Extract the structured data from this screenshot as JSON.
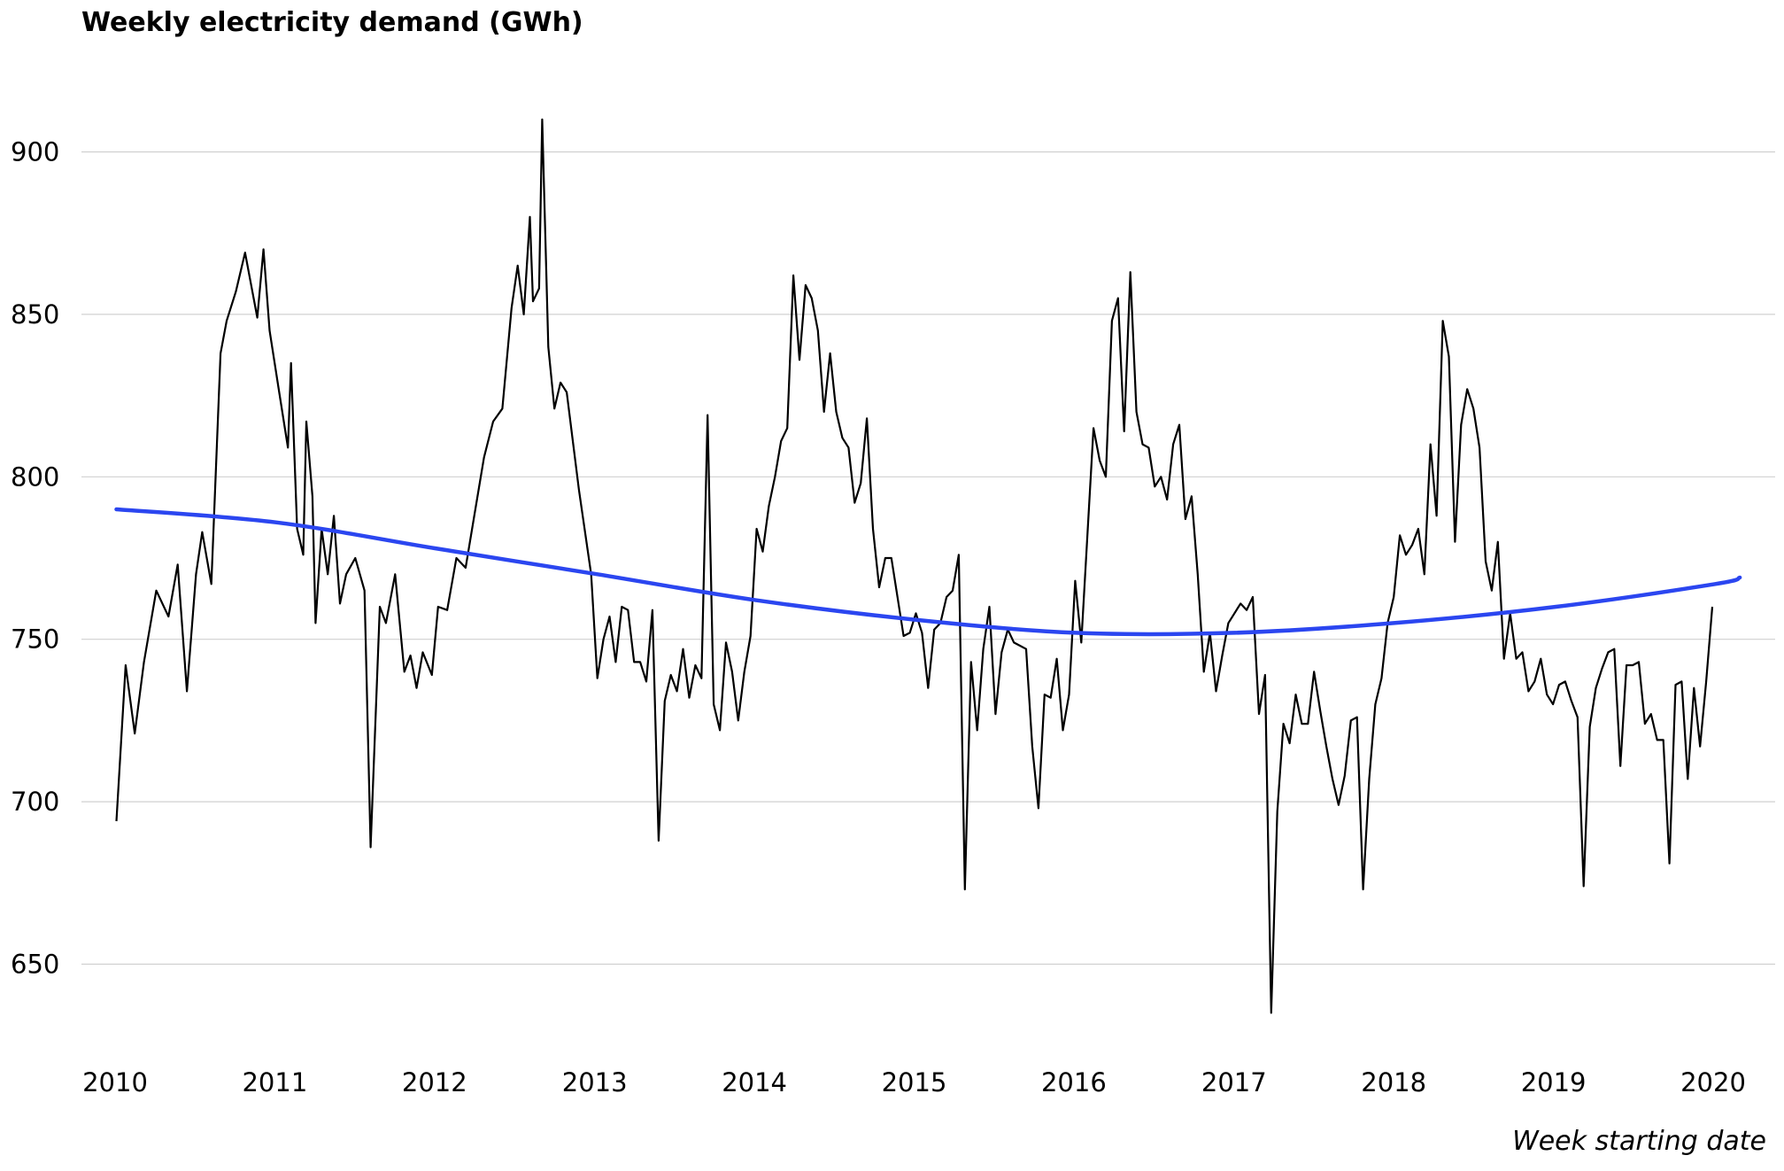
{
  "chart_data": {
    "type": "line",
    "title": "Weekly electricity demand (GWh)",
    "xlabel": "Week starting date",
    "ylabel": "",
    "x_ticks": [
      "2010",
      "2011",
      "2012",
      "2013",
      "2014",
      "2015",
      "2016",
      "2017",
      "2018",
      "2019",
      "2020"
    ],
    "y_ticks": [
      "650",
      "700",
      "750",
      "800",
      "850",
      "900"
    ],
    "xlim": [
      "2010-01-04",
      "2020-03-02"
    ],
    "ylim": [
      625,
      920
    ],
    "grid": "horizontal",
    "colors": {
      "series": "#000000",
      "trend": "#2b46f0",
      "grid": "#d0d0d0"
    },
    "series": [
      {
        "type": "line",
        "points": [
          [
            "2010-01-04",
            694
          ],
          [
            "2010-01-25",
            742
          ],
          [
            "2010-02-15",
            721
          ],
          [
            "2010-03-08",
            743
          ],
          [
            "2010-04-05",
            765
          ],
          [
            "2010-05-03",
            757
          ],
          [
            "2010-05-24",
            773
          ],
          [
            "2010-06-14",
            734
          ],
          [
            "2010-07-05",
            770
          ],
          [
            "2010-07-19",
            783
          ],
          [
            "2010-08-09",
            767
          ],
          [
            "2010-08-30",
            838
          ],
          [
            "2010-09-13",
            848
          ],
          [
            "2010-10-04",
            857
          ],
          [
            "2010-10-25",
            869
          ],
          [
            "2010-11-22",
            849
          ],
          [
            "2010-12-06",
            870
          ],
          [
            "2010-12-20",
            845
          ],
          [
            "2011-01-10",
            827
          ],
          [
            "2011-01-31",
            809
          ],
          [
            "2011-02-07",
            835
          ],
          [
            "2011-02-21",
            784
          ],
          [
            "2011-03-07",
            776
          ],
          [
            "2011-03-14",
            817
          ],
          [
            "2011-03-28",
            794
          ],
          [
            "2011-04-04",
            755
          ],
          [
            "2011-04-18",
            784
          ],
          [
            "2011-05-02",
            770
          ],
          [
            "2011-05-16",
            788
          ],
          [
            "2011-05-30",
            761
          ],
          [
            "2011-06-13",
            770
          ],
          [
            "2011-07-04",
            775
          ],
          [
            "2011-07-25",
            765
          ],
          [
            "2011-08-08",
            686
          ],
          [
            "2011-08-29",
            760
          ],
          [
            "2011-09-12",
            755
          ],
          [
            "2011-10-03",
            770
          ],
          [
            "2011-10-24",
            740
          ],
          [
            "2011-11-07",
            745
          ],
          [
            "2011-11-21",
            735
          ],
          [
            "2011-12-05",
            746
          ],
          [
            "2011-12-26",
            739
          ],
          [
            "2012-01-09",
            760
          ],
          [
            "2012-01-30",
            759
          ],
          [
            "2012-02-20",
            775
          ],
          [
            "2012-03-12",
            772
          ],
          [
            "2012-04-02",
            789
          ],
          [
            "2012-04-23",
            806
          ],
          [
            "2012-05-14",
            817
          ],
          [
            "2012-06-04",
            821
          ],
          [
            "2012-06-25",
            852
          ],
          [
            "2012-07-09",
            865
          ],
          [
            "2012-07-23",
            850
          ],
          [
            "2012-08-06",
            880
          ],
          [
            "2012-08-13",
            854
          ],
          [
            "2012-08-27",
            858
          ],
          [
            "2012-09-03",
            910
          ],
          [
            "2012-09-17",
            840
          ],
          [
            "2012-10-01",
            821
          ],
          [
            "2012-10-15",
            829
          ],
          [
            "2012-10-29",
            826
          ],
          [
            "2012-11-26",
            796
          ],
          [
            "2012-12-24",
            770
          ],
          [
            "2013-01-07",
            738
          ],
          [
            "2013-01-21",
            750
          ],
          [
            "2013-02-04",
            757
          ],
          [
            "2013-02-18",
            743
          ],
          [
            "2013-03-04",
            760
          ],
          [
            "2013-03-18",
            759
          ],
          [
            "2013-04-01",
            743
          ],
          [
            "2013-04-15",
            743
          ],
          [
            "2013-04-29",
            737
          ],
          [
            "2013-05-13",
            759
          ],
          [
            "2013-05-27",
            688
          ],
          [
            "2013-06-10",
            731
          ],
          [
            "2013-06-24",
            739
          ],
          [
            "2013-07-08",
            734
          ],
          [
            "2013-07-22",
            747
          ],
          [
            "2013-08-05",
            732
          ],
          [
            "2013-08-19",
            742
          ],
          [
            "2013-09-02",
            738
          ],
          [
            "2013-09-16",
            819
          ],
          [
            "2013-09-30",
            730
          ],
          [
            "2013-10-14",
            722
          ],
          [
            "2013-10-28",
            749
          ],
          [
            "2013-11-11",
            740
          ],
          [
            "2013-11-25",
            725
          ],
          [
            "2013-12-09",
            740
          ],
          [
            "2013-12-23",
            751
          ],
          [
            "2014-01-06",
            784
          ],
          [
            "2014-01-20",
            777
          ],
          [
            "2014-02-03",
            791
          ],
          [
            "2014-02-17",
            800
          ],
          [
            "2014-03-03",
            811
          ],
          [
            "2014-03-17",
            815
          ],
          [
            "2014-03-31",
            862
          ],
          [
            "2014-04-14",
            836
          ],
          [
            "2014-04-28",
            859
          ],
          [
            "2014-05-12",
            855
          ],
          [
            "2014-05-26",
            845
          ],
          [
            "2014-06-09",
            820
          ],
          [
            "2014-06-23",
            838
          ],
          [
            "2014-07-07",
            820
          ],
          [
            "2014-07-21",
            812
          ],
          [
            "2014-08-04",
            809
          ],
          [
            "2014-08-18",
            792
          ],
          [
            "2014-09-01",
            798
          ],
          [
            "2014-09-15",
            818
          ],
          [
            "2014-09-29",
            784
          ],
          [
            "2014-10-13",
            766
          ],
          [
            "2014-10-27",
            775
          ],
          [
            "2014-11-10",
            775
          ],
          [
            "2014-11-24",
            763
          ],
          [
            "2014-12-08",
            751
          ],
          [
            "2014-12-22",
            752
          ],
          [
            "2015-01-05",
            758
          ],
          [
            "2015-01-19",
            752
          ],
          [
            "2015-02-02",
            735
          ],
          [
            "2015-02-16",
            753
          ],
          [
            "2015-03-02",
            755
          ],
          [
            "2015-03-16",
            763
          ],
          [
            "2015-03-30",
            765
          ],
          [
            "2015-04-13",
            776
          ],
          [
            "2015-04-27",
            673
          ],
          [
            "2015-05-11",
            743
          ],
          [
            "2015-05-25",
            722
          ],
          [
            "2015-06-08",
            747
          ],
          [
            "2015-06-22",
            760
          ],
          [
            "2015-07-06",
            727
          ],
          [
            "2015-07-20",
            746
          ],
          [
            "2015-08-03",
            753
          ],
          [
            "2015-08-17",
            749
          ],
          [
            "2015-08-31",
            748
          ],
          [
            "2015-09-14",
            747
          ],
          [
            "2015-09-28",
            717
          ],
          [
            "2015-10-12",
            698
          ],
          [
            "2015-10-26",
            733
          ],
          [
            "2015-11-09",
            732
          ],
          [
            "2015-11-23",
            744
          ],
          [
            "2015-12-07",
            722
          ],
          [
            "2015-12-21",
            733
          ],
          [
            "2016-01-04",
            768
          ],
          [
            "2016-01-18",
            749
          ],
          [
            "2016-02-01",
            782
          ],
          [
            "2016-02-15",
            815
          ],
          [
            "2016-02-29",
            805
          ],
          [
            "2016-03-14",
            800
          ],
          [
            "2016-03-28",
            848
          ],
          [
            "2016-04-11",
            855
          ],
          [
            "2016-04-25",
            814
          ],
          [
            "2016-05-09",
            863
          ],
          [
            "2016-05-23",
            820
          ],
          [
            "2016-06-06",
            810
          ],
          [
            "2016-06-20",
            809
          ],
          [
            "2016-07-04",
            797
          ],
          [
            "2016-07-18",
            800
          ],
          [
            "2016-08-01",
            793
          ],
          [
            "2016-08-15",
            810
          ],
          [
            "2016-08-29",
            816
          ],
          [
            "2016-09-12",
            787
          ],
          [
            "2016-09-26",
            794
          ],
          [
            "2016-10-10",
            770
          ],
          [
            "2016-10-24",
            740
          ],
          [
            "2016-11-07",
            752
          ],
          [
            "2016-11-21",
            734
          ],
          [
            "2016-12-05",
            745
          ],
          [
            "2016-12-19",
            755
          ],
          [
            "2017-01-02",
            758
          ],
          [
            "2017-01-16",
            761
          ],
          [
            "2017-01-30",
            759
          ],
          [
            "2017-02-13",
            763
          ],
          [
            "2017-02-27",
            727
          ],
          [
            "2017-03-13",
            739
          ],
          [
            "2017-03-27",
            635
          ],
          [
            "2017-04-10",
            697
          ],
          [
            "2017-04-24",
            724
          ],
          [
            "2017-05-08",
            718
          ],
          [
            "2017-05-22",
            733
          ],
          [
            "2017-06-05",
            724
          ],
          [
            "2017-06-19",
            724
          ],
          [
            "2017-07-03",
            740
          ],
          [
            "2017-07-17",
            728
          ],
          [
            "2017-07-31",
            717
          ],
          [
            "2017-08-14",
            707
          ],
          [
            "2017-08-28",
            699
          ],
          [
            "2017-09-11",
            708
          ],
          [
            "2017-09-25",
            725
          ],
          [
            "2017-10-09",
            726
          ],
          [
            "2017-10-23",
            673
          ],
          [
            "2017-11-06",
            707
          ],
          [
            "2017-11-20",
            730
          ],
          [
            "2017-12-04",
            738
          ],
          [
            "2017-12-18",
            755
          ],
          [
            "2018-01-01",
            763
          ],
          [
            "2018-01-15",
            782
          ],
          [
            "2018-01-29",
            776
          ],
          [
            "2018-02-12",
            779
          ],
          [
            "2018-02-26",
            784
          ],
          [
            "2018-03-12",
            770
          ],
          [
            "2018-03-26",
            810
          ],
          [
            "2018-04-09",
            788
          ],
          [
            "2018-04-23",
            848
          ],
          [
            "2018-05-07",
            837
          ],
          [
            "2018-05-21",
            780
          ],
          [
            "2018-06-04",
            816
          ],
          [
            "2018-06-18",
            827
          ],
          [
            "2018-07-02",
            821
          ],
          [
            "2018-07-16",
            809
          ],
          [
            "2018-07-30",
            774
          ],
          [
            "2018-08-13",
            765
          ],
          [
            "2018-08-27",
            780
          ],
          [
            "2018-09-10",
            744
          ],
          [
            "2018-09-24",
            758
          ],
          [
            "2018-10-08",
            744
          ],
          [
            "2018-10-22",
            746
          ],
          [
            "2018-11-05",
            734
          ],
          [
            "2018-11-19",
            737
          ],
          [
            "2018-12-03",
            744
          ],
          [
            "2018-12-17",
            733
          ],
          [
            "2018-12-31",
            730
          ],
          [
            "2019-01-14",
            736
          ],
          [
            "2019-01-28",
            737
          ],
          [
            "2019-02-11",
            731
          ],
          [
            "2019-02-25",
            726
          ],
          [
            "2019-03-11",
            674
          ],
          [
            "2019-03-25",
            723
          ],
          [
            "2019-04-08",
            735
          ],
          [
            "2019-04-22",
            741
          ],
          [
            "2019-05-06",
            746
          ],
          [
            "2019-05-20",
            747
          ],
          [
            "2019-06-03",
            711
          ],
          [
            "2019-06-17",
            742
          ],
          [
            "2019-07-01",
            742
          ],
          [
            "2019-07-15",
            743
          ],
          [
            "2019-07-29",
            724
          ],
          [
            "2019-08-12",
            727
          ],
          [
            "2019-08-26",
            719
          ],
          [
            "2019-09-09",
            719
          ],
          [
            "2019-09-23",
            681
          ],
          [
            "2019-10-07",
            736
          ],
          [
            "2019-10-21",
            737
          ],
          [
            "2019-11-04",
            707
          ],
          [
            "2019-11-18",
            735
          ],
          [
            "2019-12-02",
            717
          ],
          [
            "2019-12-16",
            737
          ],
          [
            "2019-12-30",
            760
          ]
        ]
      },
      {
        "type": "line",
        "points": [
          [
            "2010-01-04",
            790
          ],
          [
            "2011-01-03",
            786
          ],
          [
            "2012-01-02",
            778
          ],
          [
            "2013-01-07",
            770
          ],
          [
            "2014-01-06",
            762
          ],
          [
            "2015-01-05",
            756
          ],
          [
            "2016-01-04",
            752
          ],
          [
            "2017-01-02",
            752
          ],
          [
            "2018-01-01",
            755
          ],
          [
            "2019-01-07",
            760
          ],
          [
            "2020-01-06",
            767
          ],
          [
            "2020-03-02",
            769
          ]
        ]
      }
    ]
  }
}
